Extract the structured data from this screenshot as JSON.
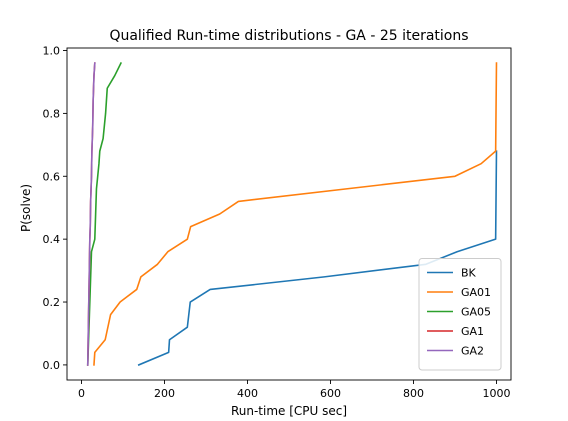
{
  "chart_data": {
    "type": "line",
    "title": "Qualified Run-time distributions - GA - 25 iterations",
    "xlabel": "Run-time [CPU sec]",
    "ylabel": "P(solve)",
    "xlim": [
      -35,
      1035
    ],
    "ylim": [
      -0.048,
      1.008
    ],
    "xticks": [
      0,
      200,
      400,
      600,
      800,
      1000
    ],
    "xtick_labels": [
      "0",
      "200",
      "400",
      "600",
      "800",
      "1000"
    ],
    "yticks": [
      0.0,
      0.2,
      0.4,
      0.6,
      0.8,
      1.0
    ],
    "ytick_labels": [
      "0.0",
      "0.2",
      "0.4",
      "0.6",
      "0.8",
      "1.0"
    ],
    "grid": false,
    "legend_position": "lower-right",
    "series": [
      {
        "name": "BK",
        "color": "#1f77b4",
        "points": [
          [
            138,
            0.0
          ],
          [
            210,
            0.04
          ],
          [
            212,
            0.08
          ],
          [
            255,
            0.12
          ],
          [
            262,
            0.2
          ],
          [
            310,
            0.24
          ],
          [
            585,
            0.28
          ],
          [
            830,
            0.32
          ],
          [
            905,
            0.36
          ],
          [
            998,
            0.4
          ],
          [
            1000,
            0.68
          ]
        ]
      },
      {
        "name": "GA01",
        "color": "#ff7f0e",
        "points": [
          [
            30,
            0.0
          ],
          [
            32,
            0.04
          ],
          [
            57,
            0.08
          ],
          [
            70,
            0.16
          ],
          [
            93,
            0.2
          ],
          [
            133,
            0.24
          ],
          [
            143,
            0.28
          ],
          [
            183,
            0.32
          ],
          [
            208,
            0.36
          ],
          [
            255,
            0.4
          ],
          [
            263,
            0.44
          ],
          [
            333,
            0.48
          ],
          [
            378,
            0.52
          ],
          [
            900,
            0.6
          ],
          [
            963,
            0.64
          ],
          [
            998,
            0.68
          ],
          [
            1000,
            0.96
          ]
        ]
      },
      {
        "name": "GA05",
        "color": "#2ca02c",
        "points": [
          [
            15,
            0.0
          ],
          [
            17,
            0.08
          ],
          [
            19,
            0.16
          ],
          [
            21,
            0.24
          ],
          [
            23,
            0.32
          ],
          [
            24,
            0.36
          ],
          [
            32,
            0.4
          ],
          [
            34,
            0.48
          ],
          [
            36,
            0.56
          ],
          [
            39,
            0.6
          ],
          [
            42,
            0.64
          ],
          [
            44,
            0.68
          ],
          [
            52,
            0.72
          ],
          [
            58,
            0.8
          ],
          [
            62,
            0.88
          ],
          [
            80,
            0.92
          ],
          [
            95,
            0.96
          ]
        ]
      },
      {
        "name": "GA1",
        "color": "#d62728",
        "points": [
          [
            15,
            0.0
          ],
          [
            16,
            0.08
          ],
          [
            17,
            0.16
          ],
          [
            18,
            0.24
          ],
          [
            19,
            0.32
          ],
          [
            20,
            0.4
          ],
          [
            21,
            0.44
          ],
          [
            22,
            0.52
          ],
          [
            24,
            0.6
          ],
          [
            25,
            0.68
          ],
          [
            27,
            0.76
          ],
          [
            28,
            0.84
          ],
          [
            30,
            0.92
          ],
          [
            32,
            0.96
          ]
        ]
      },
      {
        "name": "GA2",
        "color": "#9467bd",
        "points": [
          [
            15,
            0.0
          ],
          [
            16,
            0.08
          ],
          [
            17,
            0.16
          ],
          [
            18,
            0.24
          ],
          [
            19,
            0.32
          ],
          [
            20,
            0.4
          ],
          [
            21,
            0.44
          ],
          [
            22,
            0.52
          ],
          [
            24,
            0.6
          ],
          [
            25,
            0.68
          ],
          [
            27,
            0.76
          ],
          [
            28,
            0.84
          ],
          [
            30,
            0.92
          ],
          [
            32,
            0.96
          ]
        ]
      }
    ]
  }
}
